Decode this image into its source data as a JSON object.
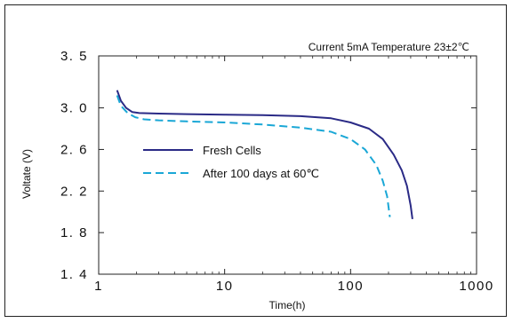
{
  "chart_data": {
    "type": "line",
    "title": "",
    "annotation": "Current 5mA   Temperature 23±2℃",
    "xlabel": "Time(h)",
    "ylabel": "Voltate (V)",
    "xscale": "log",
    "xlim": [
      1,
      1000
    ],
    "ylim": [
      1.4,
      3.5
    ],
    "xticks": [
      1,
      10,
      100,
      1000
    ],
    "xtick_labels": [
      "1",
      "10",
      "100",
      "1000"
    ],
    "yticks": [
      1.4,
      1.8,
      2.2,
      2.6,
      3.0,
      3.5
    ],
    "ytick_labels": [
      "1. 4",
      "1. 8",
      "2. 2",
      "2. 6",
      "3. 0",
      "3. 5"
    ],
    "grid": false,
    "legend_position": "center-left",
    "series": [
      {
        "name": "Fresh  Cells",
        "style": "solid",
        "color": "#2a2a86",
        "x": [
          1.4,
          1.5,
          1.65,
          1.85,
          2.1,
          3,
          5,
          10,
          20,
          40,
          70,
          100,
          140,
          180,
          220,
          255,
          280,
          300,
          310
        ],
        "y": [
          3.17,
          3.07,
          3.0,
          2.96,
          2.95,
          2.945,
          2.94,
          2.935,
          2.93,
          2.92,
          2.9,
          2.86,
          2.8,
          2.7,
          2.55,
          2.4,
          2.25,
          2.06,
          1.93
        ]
      },
      {
        "name": "After 100 days at 60℃",
        "style": "dashed",
        "color": "#1aa7d6",
        "x": [
          1.4,
          1.5,
          1.7,
          1.95,
          2.3,
          3,
          5,
          10,
          20,
          40,
          70,
          100,
          130,
          160,
          180,
          195,
          205
        ],
        "y": [
          3.12,
          3.02,
          2.95,
          2.91,
          2.89,
          2.88,
          2.87,
          2.86,
          2.84,
          2.81,
          2.77,
          2.7,
          2.6,
          2.45,
          2.3,
          2.15,
          1.95
        ]
      }
    ]
  }
}
